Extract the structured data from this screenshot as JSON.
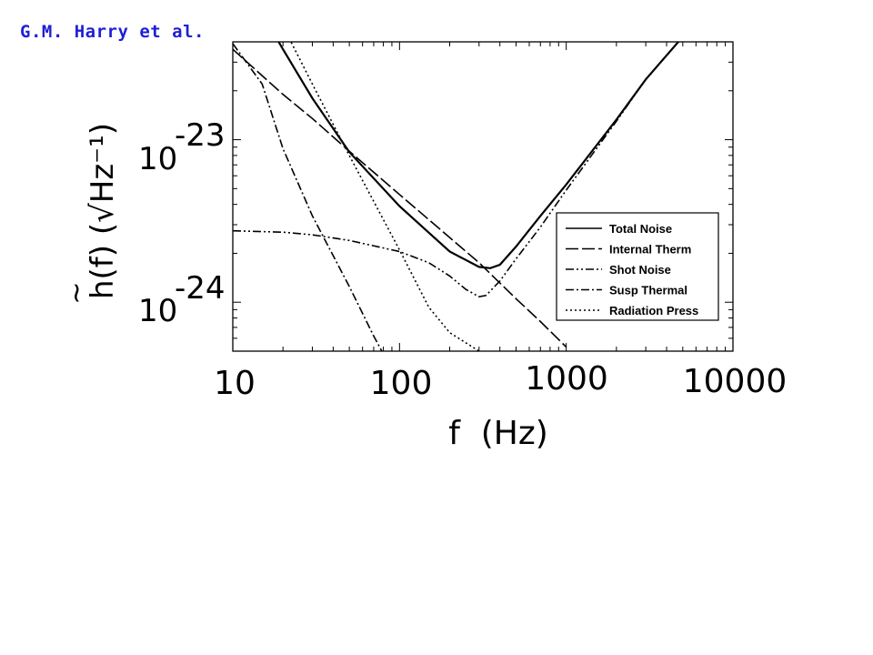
{
  "author": "G.M. Harry et al.",
  "chart_data": {
    "type": "line",
    "xscale": "log",
    "yscale": "log",
    "xlim": [
      10,
      10000
    ],
    "ylim": [
      5e-25,
      4e-23
    ],
    "xlabel": "f  (Hz)",
    "ylabel": "h(f) (√Hz⁻¹)",
    "x_ticks": [
      "10",
      "100",
      "1000",
      "10000"
    ],
    "y_ticks": [
      {
        "base": "10",
        "exponent": "-23"
      },
      {
        "base": "10",
        "exponent": "-24"
      }
    ],
    "legend_position": "right",
    "series": [
      {
        "name": "Total Noise",
        "dash": "solid",
        "x": [
          17,
          20,
          30,
          50,
          100,
          200,
          300,
          350,
          400,
          500,
          700,
          1000,
          2000,
          3000,
          5000
        ],
        "y": [
          4.8e-23,
          3.6e-23,
          1.8e-23,
          8.4e-24,
          3.9e-24,
          2.05e-24,
          1.65e-24,
          1.62e-24,
          1.7e-24,
          2.2e-24,
          3.4e-24,
          5.3e-24,
          1.33e-23,
          2.35e-23,
          4.3e-23
        ]
      },
      {
        "name": "Internal Therm",
        "dash": "long-dash",
        "x": [
          10,
          20,
          30,
          50,
          100,
          200,
          300,
          500,
          700,
          1000
        ],
        "y": [
          3.6e-23,
          1.9e-23,
          1.35e-23,
          8.5e-24,
          4.6e-24,
          2.5e-24,
          1.75e-24,
          1.05e-24,
          7.6e-25,
          5.3e-25
        ]
      },
      {
        "name": "Shot Noise",
        "dash": "dash-dot-dot",
        "x": [
          10,
          20,
          30,
          50,
          100,
          150,
          200,
          250,
          300,
          330,
          400,
          500,
          700,
          1000,
          2000,
          3000,
          5000
        ],
        "y": [
          2.75e-24,
          2.7e-24,
          2.6e-24,
          2.4e-24,
          2.05e-24,
          1.75e-24,
          1.45e-24,
          1.2e-24,
          1.08e-24,
          1.1e-24,
          1.35e-24,
          1.85e-24,
          2.9e-24,
          4.9e-24,
          1.3e-23,
          2.35e-23,
          4.3e-23
        ]
      },
      {
        "name": "Susp Thermal",
        "dash": "dash-dot",
        "x": [
          10,
          15,
          20,
          30,
          50,
          70,
          80
        ],
        "y": [
          3.9e-23,
          2.2e-23,
          8.8e-24,
          3.4e-24,
          1.25e-24,
          6.2e-25,
          4.8e-25
        ]
      },
      {
        "name": "Radiation Press",
        "dash": "dotted",
        "x": [
          20,
          30,
          50,
          100,
          150,
          200,
          300
        ],
        "y": [
          5e-23,
          2.2e-23,
          8e-24,
          2.1e-24,
          9.3e-25,
          6.5e-25,
          5e-25
        ]
      }
    ]
  }
}
